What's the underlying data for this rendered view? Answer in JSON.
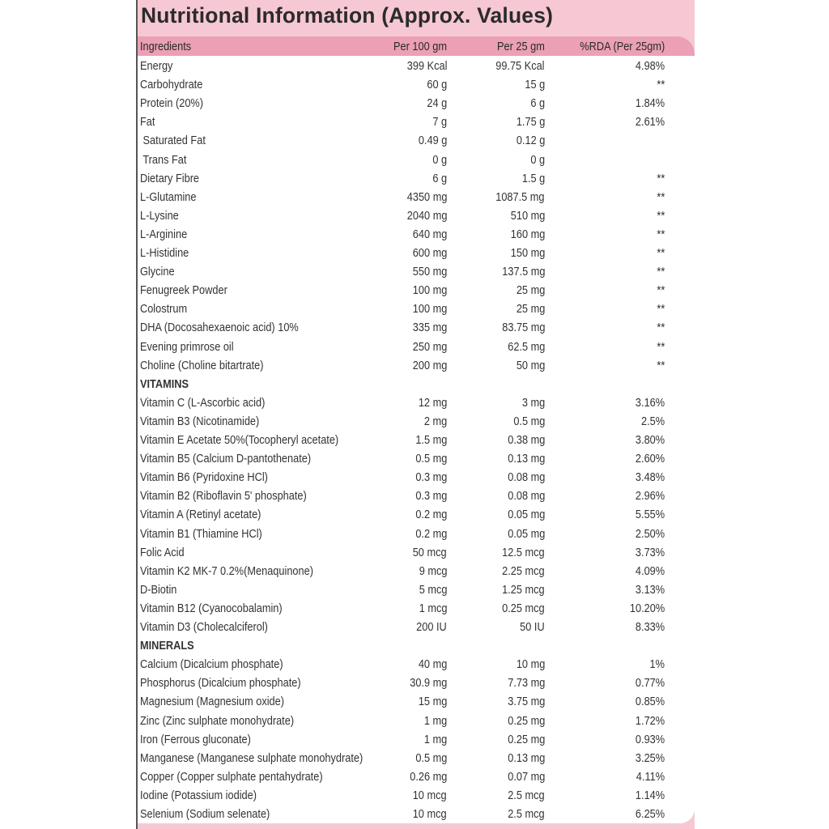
{
  "title": "Nutritional Information (Approx. Values)",
  "colors": {
    "title_band": "#f6c8d4",
    "header_band": "#eba0b5"
  },
  "columns": [
    "Ingredients",
    "Per 100 gm",
    "Per 25 gm",
    "%RDA (Per 25gm)"
  ],
  "rows": [
    [
      "Energy",
      "399 Kcal",
      "99.75 Kcal",
      "4.98%"
    ],
    [
      "Carbohydrate",
      "60 g",
      "15 g",
      "**"
    ],
    [
      "Protein (20%)",
      "24 g",
      "6 g",
      "1.84%"
    ],
    [
      "Fat",
      "7 g",
      "1.75 g",
      "2.61%"
    ],
    [
      " Saturated Fat",
      "0.49 g",
      "0.12 g",
      ""
    ],
    [
      " Trans Fat",
      "0 g",
      "0 g",
      ""
    ],
    [
      "Dietary Fibre",
      "6 g",
      "1.5 g",
      "**"
    ],
    [
      "L-Glutamine",
      "4350 mg",
      "1087.5 mg",
      "**"
    ],
    [
      "L-Lysine",
      "2040 mg",
      "510 mg",
      "**"
    ],
    [
      "L-Arginine",
      "640 mg",
      "160 mg",
      "**"
    ],
    [
      "L-Histidine",
      "600 mg",
      "150 mg",
      "**"
    ],
    [
      "Glycine",
      "550 mg",
      "137.5 mg",
      "**"
    ],
    [
      "Fenugreek Powder",
      "100 mg",
      "25 mg",
      "**"
    ],
    [
      "Colostrum",
      "100 mg",
      "25 mg",
      "**"
    ],
    [
      "DHA (Docosahexaenoic acid) 10%",
      "335 mg",
      "83.75 mg",
      "**"
    ],
    [
      "Evening primrose oil",
      "250 mg",
      "62.5 mg",
      "**"
    ],
    [
      "Choline (Choline bitartrate)",
      "200 mg",
      "50 mg",
      "**"
    ],
    [
      "VITAMINS",
      "",
      "",
      ""
    ],
    [
      "Vitamin C (L-Ascorbic acid)",
      "12 mg",
      "3 mg",
      "3.16%"
    ],
    [
      "Vitamin B3 (Nicotinamide)",
      "2 mg",
      "0.5 mg",
      "2.5%"
    ],
    [
      "Vitamin E Acetate 50%(Tocopheryl acetate)",
      "1.5 mg",
      "0.38 mg",
      "3.80%"
    ],
    [
      "Vitamin B5 (Calcium D-pantothenate)",
      "0.5 mg",
      "0.13 mg",
      "2.60%"
    ],
    [
      "Vitamin B6 (Pyridoxine HCl)",
      "0.3 mg",
      "0.08 mg",
      "3.48%"
    ],
    [
      "Vitamin B2 (Riboflavin 5' phosphate)",
      "0.3 mg",
      "0.08 mg",
      "2.96%"
    ],
    [
      "Vitamin A (Retinyl acetate)",
      "0.2 mg",
      "0.05 mg",
      "5.55%"
    ],
    [
      "Vitamin B1 (Thiamine HCl)",
      "0.2 mg",
      "0.05 mg",
      "2.50%"
    ],
    [
      "Folic Acid",
      "50 mcg",
      "12.5 mcg",
      "3.73%"
    ],
    [
      "Vitamin K2 MK-7 0.2%(Menaquinone)",
      "9 mcg",
      "2.25 mcg",
      "4.09%"
    ],
    [
      "D-Biotin",
      "5 mcg",
      "1.25 mcg",
      "3.13%"
    ],
    [
      "Vitamin B12 (Cyanocobalamin)",
      "1 mcg",
      "0.25 mcg",
      "10.20%"
    ],
    [
      "Vitamin D3 (Cholecalciferol)",
      "200 IU",
      "50 IU",
      "8.33%"
    ],
    [
      "MINERALS",
      "",
      "",
      ""
    ],
    [
      "Calcium (Dicalcium phosphate)",
      "40 mg",
      "10 mg",
      "1%"
    ],
    [
      "Phosphorus (Dicalcium phosphate)",
      "30.9 mg",
      "7.73 mg",
      "0.77%"
    ],
    [
      "Magnesium (Magnesium oxide)",
      "15 mg",
      "3.75 mg",
      "0.85%"
    ],
    [
      "Zinc (Zinc sulphate monohydrate)",
      "1 mg",
      "0.25 mg",
      "1.72%"
    ],
    [
      "Iron (Ferrous gluconate)",
      "1 mg",
      "0.25 mg",
      "0.93%"
    ],
    [
      "Manganese (Manganese sulphate monohydrate)",
      "0.5 mg",
      "0.13 mg",
      "3.25%"
    ],
    [
      "Copper (Copper sulphate pentahydrate)",
      "0.26 mg",
      "0.07 mg",
      "4.11%"
    ],
    [
      "Iodine (Potassium iodide)",
      "10 mcg",
      "2.5 mcg",
      "1.14%"
    ],
    [
      "Selenium (Sodium selenate)",
      "10 mcg",
      "2.5 mcg",
      "6.25%"
    ]
  ]
}
